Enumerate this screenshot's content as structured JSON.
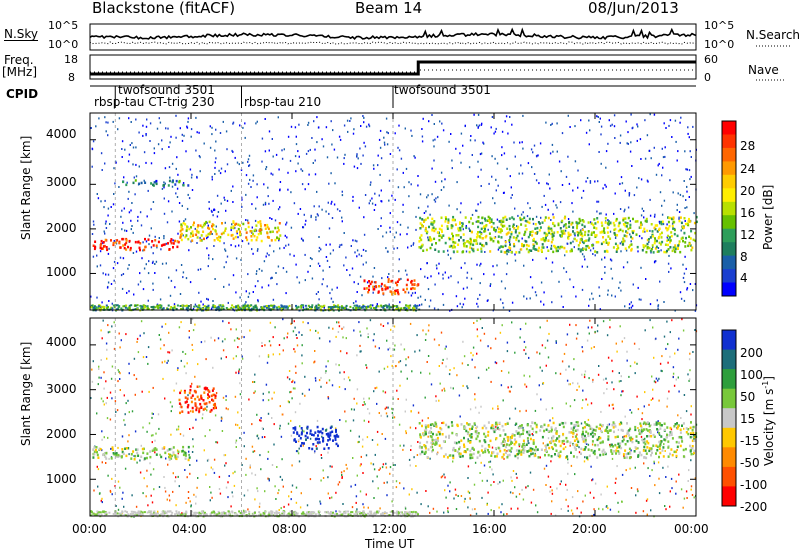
{
  "header": {
    "site": "Blackstone (fitACF)",
    "beam": "Beam 14",
    "date": "08/Jun/2013"
  },
  "top_panels": {
    "nsky_label": "N.Sky",
    "nsky_ticks": [
      "10^5",
      "10^0"
    ],
    "nsearch_label": "N.Search",
    "nsearch_ticks": [
      "10^5",
      "10^0"
    ],
    "freq_label_1": "Freq.",
    "freq_label_2": "[MHz]",
    "freq_ticks": [
      "18",
      "8"
    ],
    "nave_label": "Nave",
    "nave_ticks": [
      "60",
      "0"
    ],
    "cpid_label": "CPID",
    "cpid_segments": [
      {
        "name": "twofsound 3501",
        "start_hour": 1.0
      },
      {
        "name": "rbsp-tau CT-trig 230",
        "start_hour": 0.0
      },
      {
        "name": "rbsp-tau 210",
        "start_hour": 6.0
      },
      {
        "name": "twofsound 3501",
        "start_hour": 12.0
      }
    ]
  },
  "colorbars": {
    "power": {
      "label": "Power [dB]",
      "ticks": [
        "28",
        "24",
        "20",
        "16",
        "12",
        "8",
        "4"
      ],
      "colors": [
        "#ff0000",
        "#ff3300",
        "#ff6600",
        "#ff9900",
        "#ffcc00",
        "#ffee00",
        "#b8e000",
        "#66c000",
        "#2e9e5a",
        "#1e7e5e",
        "#1a5fa8",
        "#1a3fd0",
        "#0000ff"
      ]
    },
    "velocity": {
      "label_main": "Velocity [m s",
      "label_sup": "-1",
      "label_end": "]",
      "ticks": [
        "200",
        "100",
        "50",
        "15",
        "-15",
        "-50",
        "-100",
        "-200"
      ],
      "colors": [
        "#1030d0",
        "#1d6e7a",
        "#2e9e3c",
        "#78c83a",
        "#c8c8c8",
        "#ffc800",
        "#ff8a00",
        "#ff5000",
        "#ff0000"
      ]
    }
  },
  "chart_data": [
    {
      "type": "heatmap",
      "title": "Power",
      "xlabel": "",
      "ylabel": "Slant Range [km]",
      "xlim": [
        0,
        24
      ],
      "ylim": [
        180,
        4600
      ],
      "yticks": [
        1000,
        2000,
        3000,
        4000
      ],
      "x_tick_labels": [],
      "zlim": [
        0,
        30
      ],
      "zlabel": "Power [dB]",
      "features": [
        {
          "hours": [
            0,
            3.5
          ],
          "range_km": [
            1550,
            1800
          ],
          "value_db": 28
        },
        {
          "hours": [
            3.5,
            7.5
          ],
          "range_km": [
            1750,
            2200
          ],
          "value_db": 18
        },
        {
          "hours": [
            1.2,
            4.0
          ],
          "range_km": [
            3000,
            3120
          ],
          "value_db": 6
        },
        {
          "hours": [
            10.8,
            13.0
          ],
          "range_km": [
            550,
            900
          ],
          "value_db": 28
        },
        {
          "hours": [
            13.0,
            24.0
          ],
          "range_km": [
            1500,
            2300
          ],
          "value_db": 12
        }
      ]
    },
    {
      "type": "heatmap",
      "title": "Velocity",
      "xlabel": "Time UT",
      "ylabel": "Slant Range [km]",
      "xlim": [
        0,
        24
      ],
      "ylim": [
        180,
        4600
      ],
      "yticks": [
        1000,
        2000,
        3000,
        4000
      ],
      "x_tick_labels": [
        "00:00",
        "04:00",
        "08:00",
        "12:00",
        "16:00",
        "20:00",
        "00:00"
      ],
      "zlim": [
        -250,
        250
      ],
      "zlabel": "Velocity [m s-1]",
      "features": [
        {
          "hours": [
            0,
            4.0
          ],
          "range_km": [
            1450,
            1750
          ],
          "value_ms": -15
        },
        {
          "hours": [
            3.5,
            5.0
          ],
          "range_km": [
            2500,
            3100
          ],
          "value_ms": -200
        },
        {
          "hours": [
            8.0,
            9.8
          ],
          "range_km": [
            1700,
            2200
          ],
          "value_ms": 200
        },
        {
          "hours": [
            13.0,
            24.0
          ],
          "range_km": [
            1500,
            2300
          ],
          "value_ms": 0
        }
      ]
    }
  ]
}
